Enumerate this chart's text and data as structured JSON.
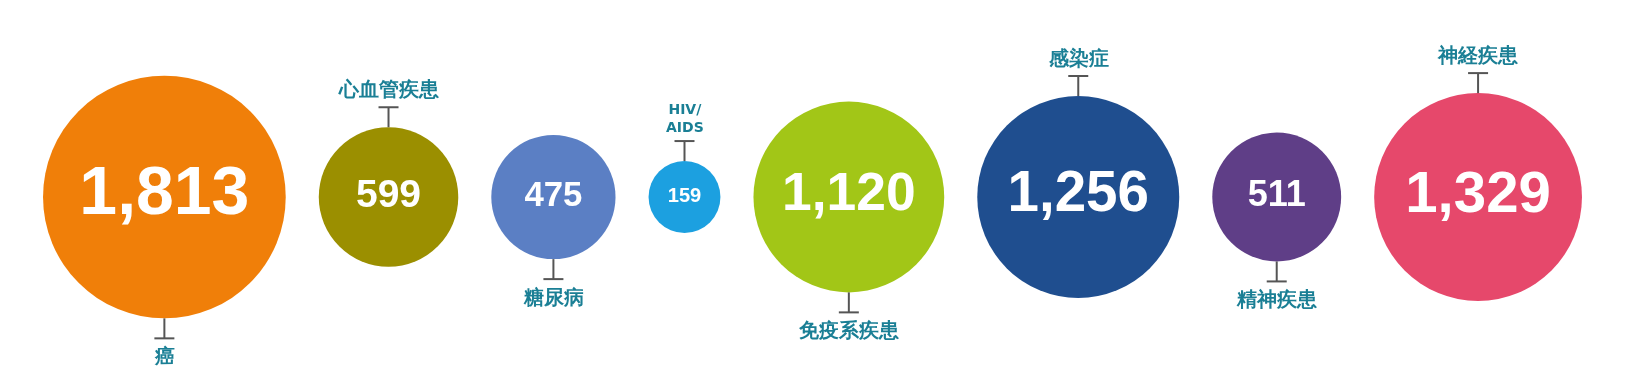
{
  "chart_data": {
    "type": "other",
    "categories": [
      "癌",
      "心血管疾患",
      "糖尿病",
      "HIV/\nAIDS",
      "免疫系疾患",
      "感染症",
      "精神疾患",
      "神経疾患"
    ],
    "values": [
      1813,
      599,
      475,
      159,
      1120,
      1256,
      511,
      1329
    ],
    "colors": [
      "#f07f09",
      "#9b8f00",
      "#5b7fc4",
      "#1ca0e0",
      "#a2c617",
      "#1f4e8f",
      "#5f3e87",
      "#e6486b"
    ],
    "value_labels": [
      "1,813",
      "599",
      "475",
      "159",
      "1,120",
      "1,256",
      "511",
      "1,329"
    ]
  }
}
